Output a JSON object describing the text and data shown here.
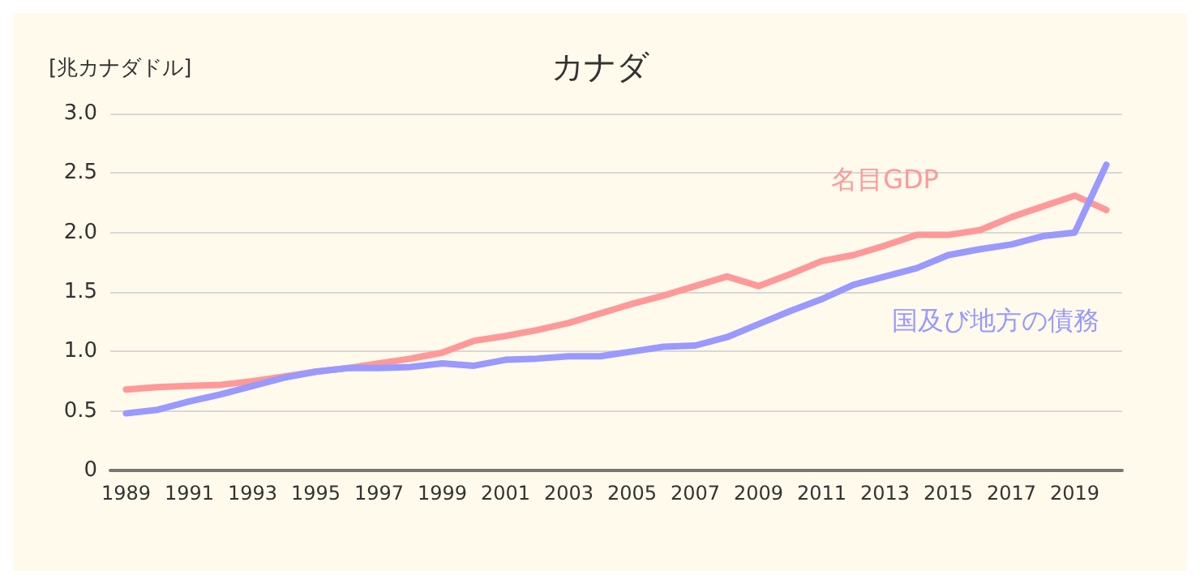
{
  "chart_data": {
    "type": "line",
    "title": "カナダ",
    "ylabel": "[兆カナダドル]",
    "categories": [
      "1989",
      null,
      "1991",
      null,
      "1993",
      null,
      "1995",
      null,
      "1997",
      null,
      "1999",
      null,
      "2001",
      null,
      "2003",
      null,
      "2005",
      null,
      "2007",
      null,
      "2009",
      null,
      "2011",
      null,
      "2013",
      null,
      "2015",
      null,
      "2017",
      null,
      "2019",
      null
    ],
    "series": [
      {
        "name": "名目GDP",
        "color": "#ff9999",
        "values": [
          0.68,
          0.7,
          0.71,
          0.72,
          0.75,
          0.79,
          0.83,
          0.86,
          0.9,
          0.94,
          0.99,
          1.09,
          1.13,
          1.18,
          1.24,
          1.32,
          1.4,
          1.47,
          1.55,
          1.63,
          1.55,
          1.65,
          1.76,
          1.81,
          1.89,
          1.98,
          1.98,
          2.02,
          2.13,
          2.22,
          2.31,
          2.19
        ]
      },
      {
        "name": "国及び地方の債務",
        "color": "#9999ff",
        "values": [
          0.48,
          0.51,
          0.58,
          0.64,
          0.71,
          0.78,
          0.83,
          0.86,
          0.86,
          0.87,
          0.9,
          0.88,
          0.93,
          0.94,
          0.96,
          0.96,
          1.0,
          1.04,
          1.05,
          1.12,
          1.23,
          1.34,
          1.44,
          1.56,
          1.63,
          1.7,
          1.81,
          1.86,
          1.9,
          1.97,
          2.0,
          2.57
        ]
      }
    ],
    "ylim": [
      0,
      3
    ],
    "yticks": [
      0,
      {
        "value": 0.5,
        "label": "0.5"
      },
      {
        "value": 1,
        "label": "1.0"
      },
      {
        "value": 1.5,
        "label": "1.5"
      },
      {
        "value": 2,
        "label": "2.0"
      },
      {
        "value": 2.5,
        "label": "2.5"
      },
      {
        "value": 3,
        "label": "3.0"
      }
    ],
    "grid": "y",
    "legend": false,
    "marker": "none",
    "line_style": "solid"
  }
}
